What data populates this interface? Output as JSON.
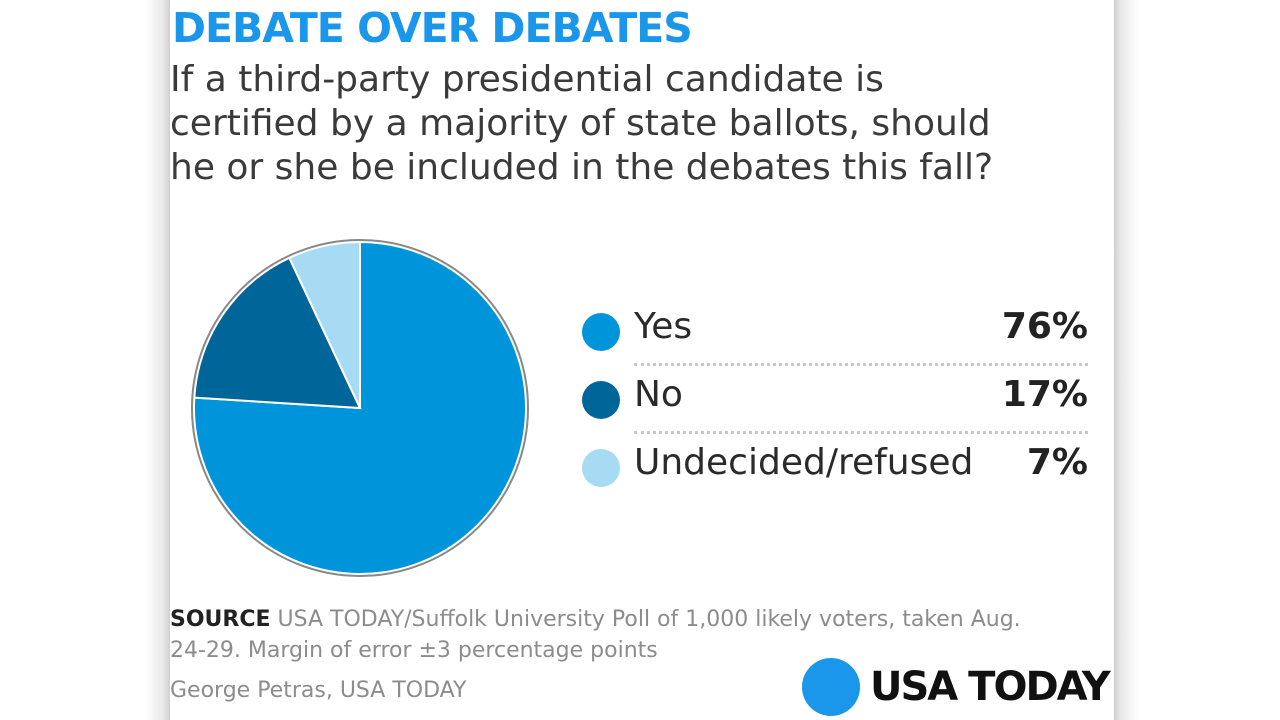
{
  "headline": "DEBATE OVER DEBATES",
  "question": "If a third-party presidential candidate is\ncertified by a majority of state ballots, should\nhe or she be included in the debates this fall?",
  "source": {
    "label": "SOURCE",
    "text": " USA TODAY/Suffolk University Poll of 1,000 likely voters, taken Aug. 24-29. Margin of error ±3 percentage points"
  },
  "credit": "George Petras, USA TODAY",
  "logo": {
    "text": "USA TODAY",
    "color": "#1a97ea"
  },
  "chart_data": {
    "type": "pie",
    "title": "If a third-party presidential candidate is certified by a majority of state ballots, should he or she be included in the debates this fall?",
    "slices": [
      {
        "label": "Yes",
        "value": 76,
        "value_label": "76%",
        "color": "#0095da"
      },
      {
        "label": "No",
        "value": 17,
        "value_label": "17%",
        "color": "#00669a"
      },
      {
        "label": "Undecided/refused",
        "value": 7,
        "value_label": "7%",
        "color": "#a7dbf4"
      }
    ],
    "outline_color": "#888888",
    "legend_position": "right"
  }
}
